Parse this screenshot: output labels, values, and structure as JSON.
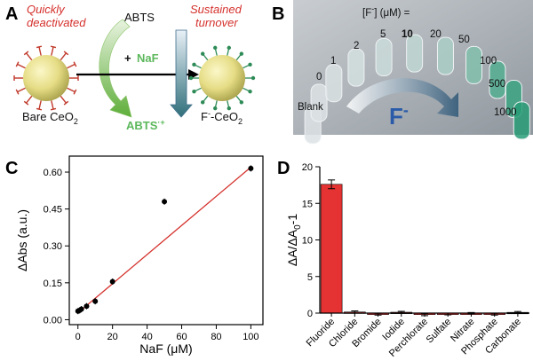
{
  "panels": {
    "a": "A",
    "b": "B",
    "c": "C",
    "d": "D"
  },
  "schematic": {
    "left_caption_line1": "Quickly",
    "left_caption_line2": "deactivated",
    "right_caption_line1": "Sustained",
    "right_caption_line2": "turnover",
    "substrate": "ABTS",
    "product": "ABTS",
    "product_sup": "·+",
    "additive_plus": "+",
    "additive": "NaF",
    "bare_label": "Bare CeO",
    "bare_sub": "2",
    "f_label_sup": "-",
    "f_label_base": "F",
    "f_label_rest": "-CeO",
    "f_label_sub": "2"
  },
  "photo": {
    "header": "[F",
    "header_sup": "-",
    "header_rest": "] (μM) =",
    "tubes": [
      "Blank",
      "0",
      "1",
      "2",
      "5",
      "10",
      "20",
      "50",
      "100",
      "500",
      "1000"
    ],
    "highlight": "10",
    "big_label": "F",
    "big_sup": "-",
    "colors": {
      "highlight": "#e02020",
      "big_label": "#2a5ba8"
    }
  },
  "chart_data": [
    {
      "type": "scatter",
      "panel": "C",
      "title": "",
      "xlabel": "NaF (μM)",
      "ylabel": "ΔAbs (a.u.)",
      "xlim": [
        -5,
        107
      ],
      "ylim": [
        -0.02,
        0.665
      ],
      "xticks": [
        0,
        20,
        40,
        60,
        80,
        100
      ],
      "yticks": [
        0.0,
        0.15,
        0.3,
        0.45,
        0.6
      ],
      "ytick_labels": [
        "0.00",
        "0.15",
        "0.30",
        "0.45",
        "0.60"
      ],
      "series": [
        {
          "name": "data",
          "x": [
            0,
            1,
            2,
            5,
            10,
            20,
            50,
            100
          ],
          "y": [
            0.035,
            0.038,
            0.043,
            0.055,
            0.075,
            0.155,
            0.48,
            0.615
          ]
        }
      ],
      "fit": {
        "x": [
          0,
          100
        ],
        "y": [
          0.028,
          0.62
        ],
        "color": "#d4302b"
      }
    },
    {
      "type": "bar",
      "panel": "D",
      "title": "",
      "xlabel": "",
      "ylabel": "ΔA/ΔA",
      "ylabel_sub": "0",
      "ylabel_rest": "-1",
      "ylim": [
        0,
        20
      ],
      "yticks": [
        0,
        5,
        10,
        15,
        20
      ],
      "categories": [
        "Fluoride",
        "Chloride",
        "Bromide",
        "Iodide",
        "Perchlorate",
        "Sulfate",
        "Nitrate",
        "Phosphate",
        "Carbonate"
      ],
      "values": [
        17.6,
        0.15,
        -0.15,
        0.12,
        -0.2,
        -0.12,
        0.0,
        -0.15,
        0.1
      ],
      "errors": [
        0.6,
        0.15,
        0.12,
        0.12,
        0.15,
        0.12,
        0.08,
        0.12,
        0.12
      ],
      "color": "#e53232"
    }
  ]
}
